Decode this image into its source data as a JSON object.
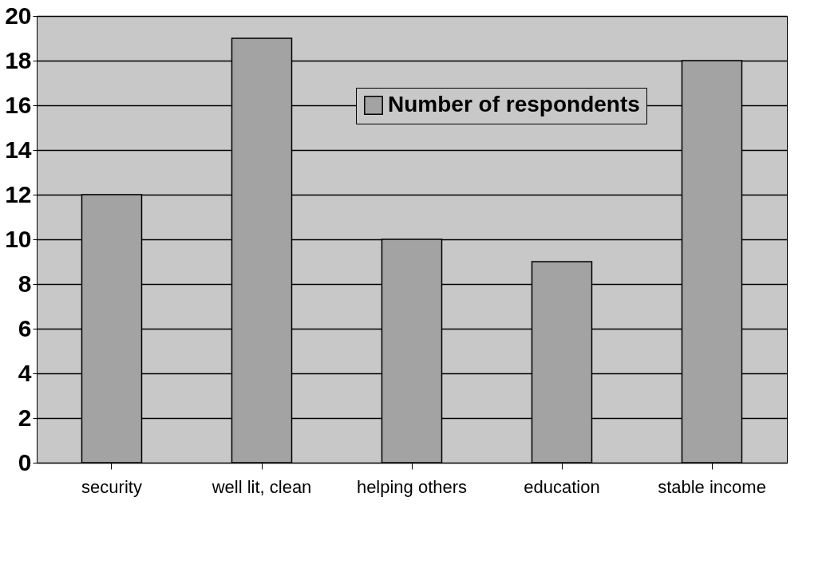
{
  "chart_data": {
    "type": "bar",
    "categories": [
      "security",
      "well lit, clean",
      "helping others",
      "education",
      "stable income"
    ],
    "series": [
      {
        "name": "Number of respondents",
        "color": "#a3a3a3",
        "values": [
          12,
          19,
          10,
          9,
          18
        ]
      }
    ],
    "ylim": [
      0,
      20
    ],
    "yticks": [
      0,
      2,
      4,
      6,
      8,
      10,
      12,
      14,
      16,
      18,
      20
    ],
    "grid": "y",
    "legend": "top right"
  }
}
